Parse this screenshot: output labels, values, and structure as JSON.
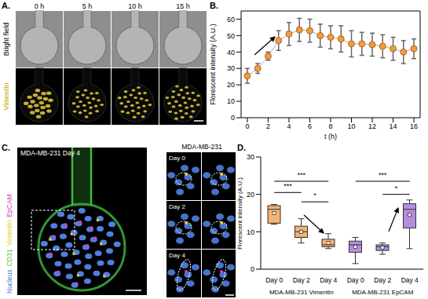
{
  "figure": {
    "A": {
      "label": "A.",
      "columns": [
        "0 h",
        "5 h",
        "10 h",
        "15 h"
      ],
      "rows": [
        {
          "name": "Bright field",
          "color": "#000000"
        },
        {
          "name": "Vimentin",
          "color": "#c9a800"
        }
      ]
    },
    "C": {
      "label": "C.",
      "title": "MDA-MB-231 Day 4",
      "channels": [
        {
          "name": "Nucleus",
          "color": "#4f7fe0"
        },
        {
          "name": "CD31",
          "color": "#3dbb3d"
        },
        {
          "name": "Vimentin",
          "color": "#e0d020"
        },
        {
          "name": "EpCAM",
          "color": "#d040c0"
        }
      ],
      "inset_title": "MDA-MB-231",
      "inset_rows": [
        "Day 0",
        "Day 2",
        "Day 4"
      ]
    }
  },
  "chart_data": [
    {
      "title": "B.",
      "type": "line",
      "marker": "circle",
      "color": "#f39c3c",
      "x": [
        0,
        1,
        2,
        3,
        4,
        5,
        6,
        7,
        8,
        9,
        10,
        11,
        12,
        13,
        14,
        15,
        16
      ],
      "values": [
        25.5,
        30,
        37.5,
        47,
        51,
        53.5,
        53,
        50,
        49,
        48,
        45,
        45,
        44.5,
        43.5,
        42,
        40,
        42
      ],
      "errors": [
        4.5,
        3,
        2.5,
        6,
        7,
        7,
        7,
        7,
        7,
        8,
        8,
        7,
        7,
        7,
        7,
        7,
        6
      ],
      "xlim": [
        -0.6,
        16.6
      ],
      "xticks": [
        0,
        2,
        4,
        6,
        8,
        10,
        12,
        14,
        16
      ],
      "ylim": [
        0,
        65
      ],
      "yticks": [
        0,
        10,
        20,
        30,
        40,
        50,
        60
      ],
      "x_label": "t (h)",
      "y_label": "Florescent intensity (A.U.)"
    },
    {
      "title": "D.",
      "type": "box",
      "categories": [
        "Day 0",
        "Day 2",
        "Day 4",
        "Day 0",
        "Day 2",
        "Day 4"
      ],
      "boxes": [
        {
          "min": 12,
          "q1": 12.3,
          "median": 16,
          "q3": 17,
          "max": 17.3,
          "mean": 15
        },
        {
          "min": 7,
          "q1": 8.5,
          "median": 10,
          "q3": 11.5,
          "max": 13.5,
          "mean": 10
        },
        {
          "min": 5.5,
          "q1": 6,
          "median": 6.5,
          "q3": 8,
          "max": 9.5,
          "mean": 7
        },
        {
          "min": 1.5,
          "q1": 4.5,
          "median": 6.5,
          "q3": 7.5,
          "max": 8.5,
          "mean": 6
        },
        {
          "min": 4,
          "q1": 5,
          "median": 6,
          "q3": 6.5,
          "max": 7,
          "mean": 5.8
        },
        {
          "min": 5.5,
          "q1": 11,
          "median": 16,
          "q3": 17.5,
          "max": 18.5,
          "mean": 14.5
        }
      ],
      "colors": [
        "#f7b173",
        "#f7b173",
        "#f7b173",
        "#b58de0",
        "#b58de0",
        "#b58de0"
      ],
      "groups": [
        {
          "label": "MDA-MB-231 Vimentin",
          "from": 0,
          "to": 2
        },
        {
          "label": "MDA-MB-231 EpCAM",
          "from": 3,
          "to": 5
        }
      ],
      "significance": [
        {
          "from": 0,
          "to": 2,
          "y": 23.5,
          "label": "***"
        },
        {
          "from": 0,
          "to": 1,
          "y": 20.5,
          "label": "***"
        },
        {
          "from": 1,
          "to": 2,
          "y": 18,
          "label": "*"
        },
        {
          "from": 3,
          "to": 5,
          "y": 23.5,
          "label": "***"
        },
        {
          "from": 4,
          "to": 5,
          "y": 20,
          "label": "*"
        }
      ],
      "ylim": [
        0,
        30
      ],
      "yticks": [
        0,
        10,
        20,
        30
      ],
      "y_label": "Florescent intensity (A.U.)"
    }
  ]
}
